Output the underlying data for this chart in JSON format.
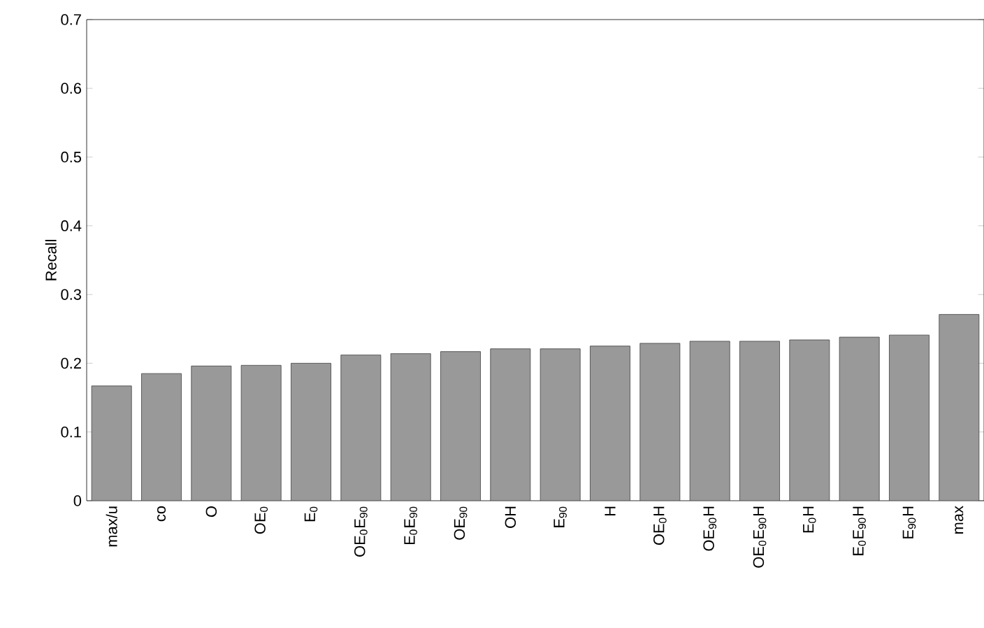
{
  "chart_data": {
    "type": "bar",
    "ylabel": "Recall",
    "categories": [
      "max/u",
      "co",
      "O",
      "OE$_{0}$",
      "E$_{0}$",
      "OE$_{0}$E$_{90}$",
      "E$_{0}$E$_{90}$",
      "OE$_{90}$",
      "OH",
      "E$_{90}$",
      "H",
      "OE$_{0}$H",
      "OE$_{90}$H",
      "OE$_{0}$E$_{90}$H",
      "E$_{0}$H",
      "E$_{0}$E$_{90}$H",
      "E$_{90}$H",
      "max"
    ],
    "values": [
      0.167,
      0.185,
      0.196,
      0.197,
      0.2,
      0.212,
      0.214,
      0.217,
      0.221,
      0.221,
      0.225,
      0.229,
      0.232,
      0.232,
      0.234,
      0.238,
      0.241,
      0.271
    ],
    "color": "#999999",
    "ylim": [
      0,
      0.7
    ],
    "yticks": [
      0,
      0.1,
      0.2,
      0.3,
      0.4,
      0.5,
      0.6,
      0.7
    ],
    "grid": false
  }
}
